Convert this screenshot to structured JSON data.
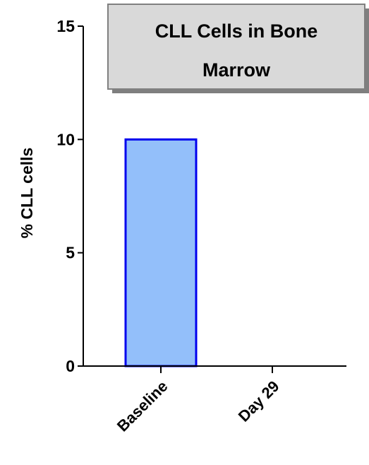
{
  "chart_data": {
    "type": "bar",
    "title_lines": [
      "CLL Cells in Bone",
      "Marrow"
    ],
    "xlabel": "",
    "ylabel": "% CLL cells",
    "categories": [
      "Baseline",
      "Day 29"
    ],
    "values": [
      10,
      0
    ],
    "ylim": [
      0,
      15
    ],
    "yticks": [
      0,
      5,
      10,
      15
    ],
    "grid": false,
    "legend": "none",
    "colors": {
      "bar_fill": "#93BFFA",
      "bar_stroke": "#0000EE",
      "axis": "#000000",
      "title_box_fill": "#D9D9D9",
      "title_box_stroke": "#808080",
      "title_box_shadow": "#7F7F7F"
    }
  }
}
